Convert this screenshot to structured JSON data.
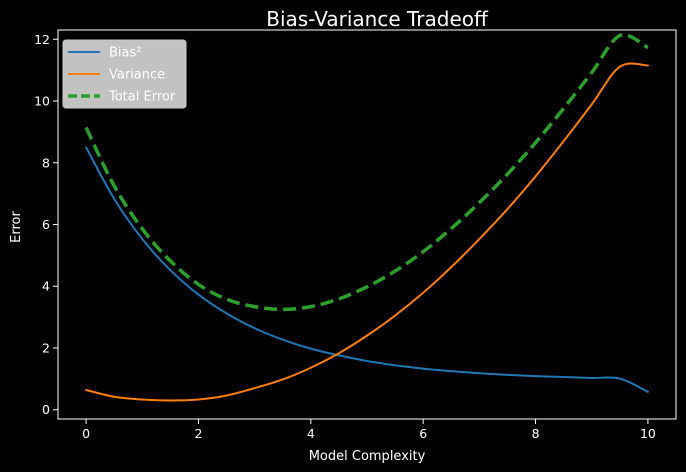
{
  "chart_data": {
    "type": "line",
    "title": "Bias-Variance Tradeoff",
    "xlabel": "Model Complexity",
    "ylabel": "Error",
    "xlim": [
      -0.5,
      10.5
    ],
    "ylim": [
      -0.3,
      12.3
    ],
    "xticks": [
      0,
      2,
      4,
      6,
      8,
      10
    ],
    "yticks": [
      0,
      2,
      4,
      6,
      8,
      10,
      12
    ],
    "grid": false,
    "legend": "top-left",
    "x": [
      0,
      0.5,
      1,
      1.5,
      2,
      2.5,
      3,
      3.5,
      4,
      4.5,
      5,
      5.5,
      6,
      6.5,
      7,
      7.5,
      8,
      8.5,
      9,
      9.5,
      10
    ],
    "series": [
      {
        "name": "Bias²",
        "color": "#1f77b4",
        "style": "solid",
        "values": [
          8.5,
          6.83,
          5.53,
          4.52,
          3.73,
          3.12,
          2.64,
          2.27,
          1.98,
          1.76,
          1.58,
          1.44,
          1.33,
          1.25,
          1.18,
          1.13,
          1.09,
          1.06,
          1.03,
          1.01,
          0.58
        ]
      },
      {
        "name": "Variance",
        "color": "#ff7f0e",
        "style": "solid",
        "values": [
          0.64,
          0.42,
          0.33,
          0.3,
          0.33,
          0.46,
          0.7,
          0.98,
          1.36,
          1.83,
          2.4,
          3.05,
          3.79,
          4.62,
          5.53,
          6.5,
          7.56,
          8.7,
          9.89,
          11.11,
          11.15
        ]
      },
      {
        "name": "Total Error",
        "color": "#2ca02c",
        "style": "dashed",
        "values": [
          9.14,
          7.25,
          5.86,
          4.82,
          4.06,
          3.58,
          3.34,
          3.25,
          3.34,
          3.59,
          3.98,
          4.49,
          5.12,
          5.87,
          6.71,
          7.63,
          8.65,
          9.76,
          10.92,
          12.12,
          11.73
        ]
      }
    ]
  }
}
